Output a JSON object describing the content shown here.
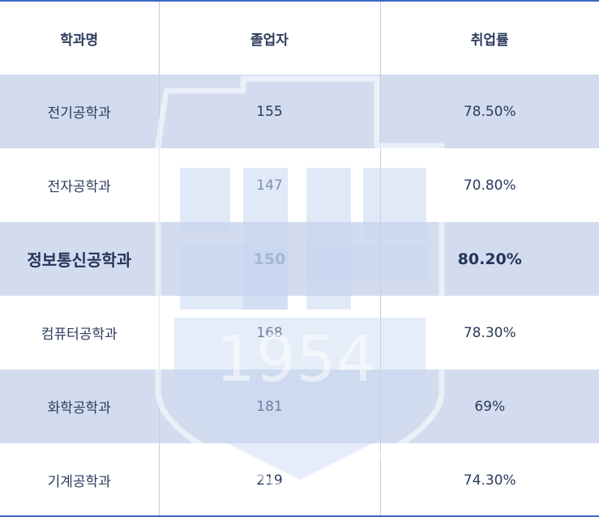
{
  "table": {
    "headers": [
      "학과명",
      "졸업자",
      "취업률"
    ],
    "rows": [
      {
        "department": "전기공학과",
        "graduates": "155",
        "rate": "78.50%",
        "highlight": false
      },
      {
        "department": "전자공학과",
        "graduates": "147",
        "rate": "70.80%",
        "highlight": false
      },
      {
        "department": "정보통신공학과",
        "graduates": "150",
        "rate": "80.20%",
        "highlight": true
      },
      {
        "department": "컴퓨터공학과",
        "graduates": "168",
        "rate": "78.30%",
        "highlight": false
      },
      {
        "department": "화학공학과",
        "graduates": "181",
        "rate": "69%",
        "highlight": false
      },
      {
        "department": "기계공학과",
        "graduates": "219",
        "rate": "74.30%",
        "highlight": false
      }
    ]
  },
  "watermark": {
    "year": "1954"
  },
  "colors": {
    "accent_border": "#3d68c8",
    "stripe": "#d3dcef",
    "text": "#2b3a5c"
  }
}
